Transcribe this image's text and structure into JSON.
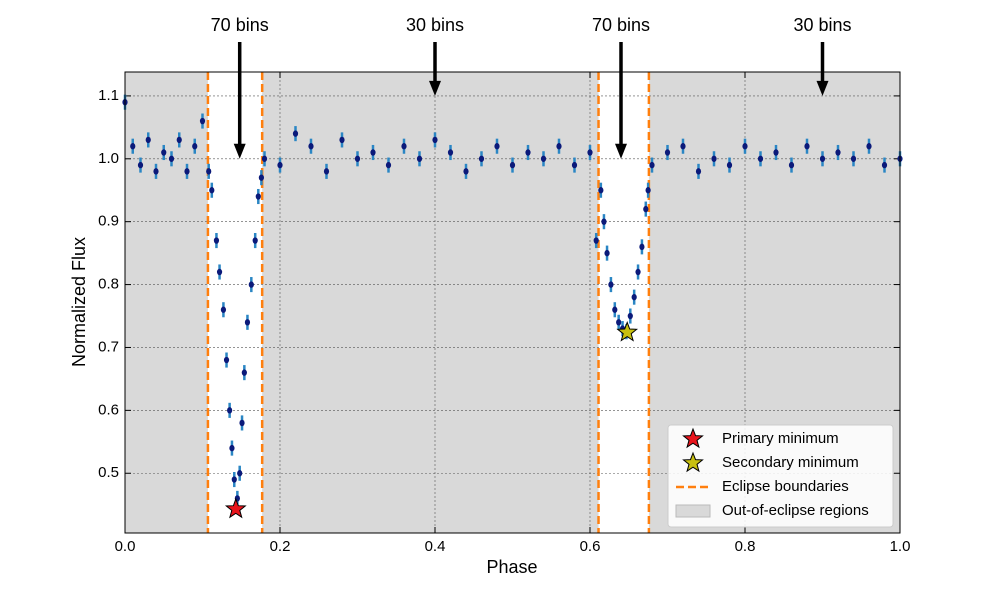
{
  "chart_data": {
    "type": "scatter",
    "xlabel": "Phase",
    "ylabel": "Normalized Flux",
    "xlim": [
      0,
      1
    ],
    "ylim": [
      0.405,
      1.138
    ],
    "xticks": [
      {
        "value": 0,
        "label": "0.0"
      },
      0.2,
      0.4,
      0.6,
      0.8,
      {
        "value": 1,
        "label": "1.0"
      }
    ],
    "yticks": [
      0.5,
      0.6,
      0.7,
      0.8,
      0.9,
      {
        "value": 1,
        "label": "1.0"
      },
      1.1
    ],
    "grid": true,
    "legend": "lower right",
    "color": "#0b1a7a",
    "ecolor": "#2a86c4",
    "yerr": 0.012,
    "x": [
      0.0,
      0.01,
      0.02,
      0.03,
      0.04,
      0.05,
      0.06,
      0.07,
      0.08,
      0.09,
      0.1,
      0.108,
      0.112,
      0.118,
      0.122,
      0.127,
      0.131,
      0.135,
      0.138,
      0.141,
      0.145,
      0.148,
      0.151,
      0.154,
      0.158,
      0.163,
      0.168,
      0.172,
      0.176,
      0.18,
      0.2,
      0.22,
      0.24,
      0.26,
      0.28,
      0.3,
      0.32,
      0.34,
      0.36,
      0.38,
      0.4,
      0.42,
      0.44,
      0.46,
      0.48,
      0.5,
      0.52,
      0.54,
      0.56,
      0.58,
      0.6,
      0.608,
      0.614,
      0.618,
      0.622,
      0.627,
      0.632,
      0.637,
      0.642,
      0.647,
      0.652,
      0.657,
      0.662,
      0.667,
      0.672,
      0.675,
      0.68,
      0.7,
      0.72,
      0.74,
      0.76,
      0.78,
      0.8,
      0.82,
      0.84,
      0.86,
      0.88,
      0.9,
      0.92,
      0.94,
      0.96,
      0.98,
      1.0
    ],
    "values": [
      1.09,
      1.02,
      0.99,
      1.03,
      0.98,
      1.01,
      1.0,
      1.03,
      0.98,
      1.02,
      1.06,
      0.98,
      0.95,
      0.87,
      0.82,
      0.76,
      0.68,
      0.6,
      0.54,
      0.49,
      0.46,
      0.5,
      0.58,
      0.66,
      0.74,
      0.8,
      0.87,
      0.94,
      0.97,
      1.0,
      0.99,
      1.04,
      1.02,
      0.98,
      1.03,
      1.0,
      1.01,
      0.99,
      1.02,
      1.0,
      1.03,
      1.01,
      0.98,
      1.0,
      1.02,
      0.99,
      1.01,
      1.0,
      1.02,
      0.99,
      1.01,
      0.87,
      0.95,
      0.9,
      0.85,
      0.8,
      0.76,
      0.74,
      0.73,
      0.725,
      0.75,
      0.78,
      0.82,
      0.86,
      0.92,
      0.95,
      0.99,
      1.01,
      1.02,
      0.98,
      1.0,
      0.99,
      1.02,
      1.0,
      1.01,
      0.99,
      1.02,
      1.0,
      1.01,
      1.0,
      1.02,
      0.99,
      1.0
    ],
    "markers": [
      {
        "name": "Primary minimum",
        "x": 0.143,
        "y": 0.443,
        "color": "#e8141c"
      },
      {
        "name": "Secondary minimum",
        "x": 0.648,
        "y": 0.724,
        "color": "#c8c010"
      }
    ],
    "eclipse_boundaries": {
      "name": "Eclipse boundaries",
      "color": "#ff7f0e",
      "values": [
        0.107,
        0.177,
        0.611,
        0.676
      ]
    },
    "out_of_eclipse": {
      "name": "Out-of-eclipse regions",
      "color": "#d9d9d9"
    },
    "annotations": [
      {
        "text": "70 bins",
        "x": 0.148,
        "y": 1.0
      },
      {
        "text": "30 bins",
        "x": 0.4,
        "y": 1.1
      },
      {
        "text": "70 bins",
        "x": 0.64,
        "y": 1.0
      },
      {
        "text": "30 bins",
        "x": 0.9,
        "y": 1.1
      }
    ]
  }
}
